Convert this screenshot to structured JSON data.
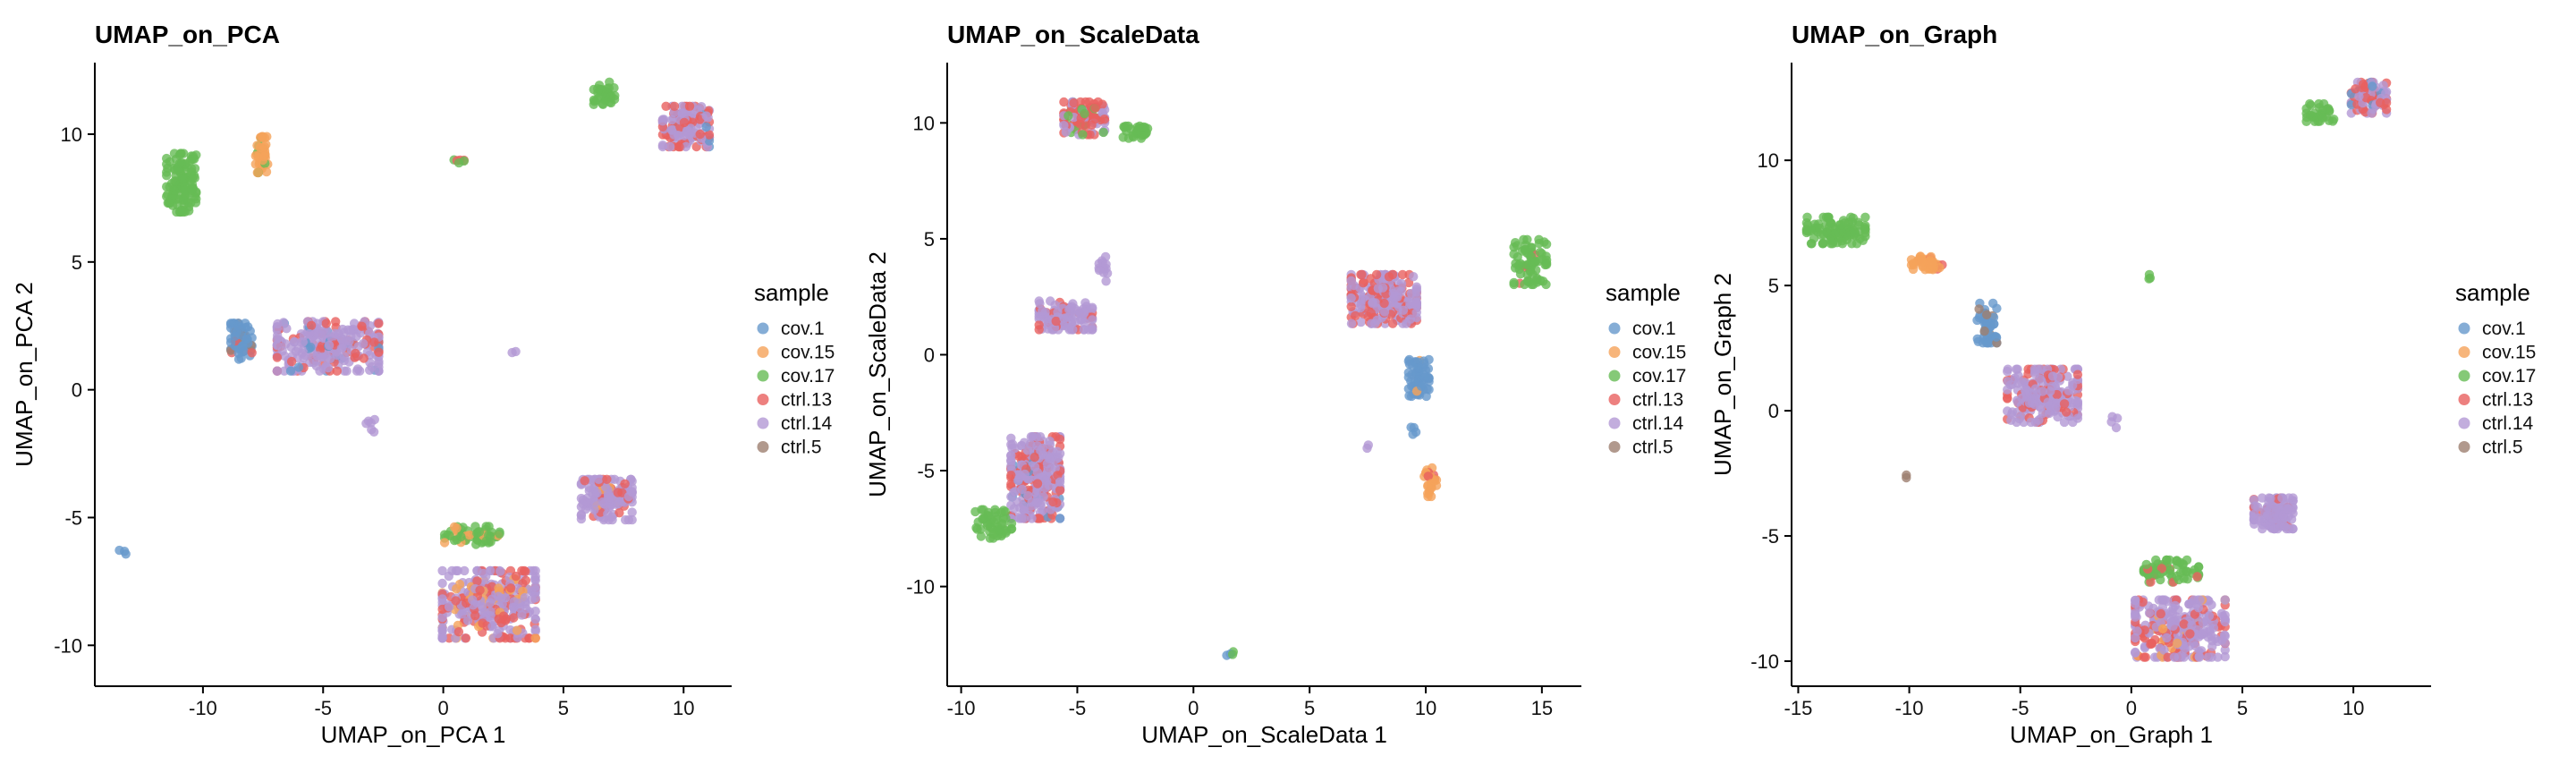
{
  "colors": {
    "cov.1": "#6699CC",
    "cov.15": "#F5A35A",
    "cov.17": "#66BB55",
    "ctrl.13": "#E8605F",
    "ctrl.14": "#B399D4",
    "ctrl.5": "#9E8070"
  },
  "chart_data": [
    {
      "type": "scatter",
      "title": "UMAP_on_PCA",
      "xlabel": "UMAP_on_PCA 1",
      "ylabel": "UMAP_on_PCA 2",
      "xlim": [
        -14.5,
        12
      ],
      "ylim": [
        -11.6,
        12.8
      ],
      "xticks": [
        -10,
        -5,
        0,
        5,
        10
      ],
      "yticks": [
        -10,
        -5,
        0,
        5,
        10
      ],
      "xtick_labels": [
        "-10",
        "-5",
        "0",
        "5",
        "10"
      ],
      "ytick_labels": [
        "-10",
        "-5",
        "0",
        "5",
        "10"
      ],
      "legend_title": "sample",
      "legend": [
        "cov.1",
        "cov.15",
        "cov.17",
        "ctrl.13",
        "ctrl.14",
        "ctrl.5"
      ],
      "legend_position": "right",
      "grid": false,
      "clusters": [
        {
          "x": -10.9,
          "y": 8.1,
          "rx": 0.7,
          "ry": 1.3,
          "n": 120,
          "mix": {
            "cov.17": 1.0
          }
        },
        {
          "x": -7.5,
          "y": 9.2,
          "rx": 0.35,
          "ry": 0.8,
          "n": 40,
          "mix": {
            "cov.15": 0.9,
            "cov.17": 0.1
          }
        },
        {
          "x": -8.4,
          "y": 1.9,
          "rx": 0.5,
          "ry": 0.8,
          "n": 60,
          "mix": {
            "cov.1": 0.85,
            "ctrl.13": 0.05,
            "ctrl.5": 0.1
          }
        },
        {
          "x": -4.8,
          "y": 1.7,
          "rx": 2.4,
          "ry": 1.1,
          "n": 260,
          "mix": {
            "ctrl.14": 0.75,
            "ctrl.13": 0.2,
            "cov.1": 0.05
          }
        },
        {
          "x": -3.0,
          "y": -1.3,
          "rx": 0.3,
          "ry": 0.4,
          "n": 6,
          "mix": {
            "ctrl.14": 1.0
          }
        },
        {
          "x": 0.6,
          "y": 9.0,
          "rx": 0.3,
          "ry": 0.2,
          "n": 6,
          "mix": {
            "cov.17": 0.6,
            "ctrl.13": 0.4
          }
        },
        {
          "x": 6.7,
          "y": 11.6,
          "rx": 0.5,
          "ry": 0.5,
          "n": 40,
          "mix": {
            "cov.17": 1.0
          }
        },
        {
          "x": 10.1,
          "y": 10.3,
          "rx": 1.1,
          "ry": 0.9,
          "n": 140,
          "mix": {
            "ctrl.14": 0.6,
            "ctrl.13": 0.35,
            "cov.1": 0.05
          }
        },
        {
          "x": 2.9,
          "y": 1.4,
          "rx": 0.15,
          "ry": 0.15,
          "n": 2,
          "mix": {
            "ctrl.14": 1.0
          }
        },
        {
          "x": -13.3,
          "y": -6.3,
          "rx": 0.2,
          "ry": 0.15,
          "n": 3,
          "mix": {
            "cov.1": 1.0
          }
        },
        {
          "x": 1.2,
          "y": -5.7,
          "rx": 1.3,
          "ry": 0.4,
          "n": 60,
          "mix": {
            "cov.17": 0.85,
            "cov.15": 0.15
          }
        },
        {
          "x": 1.9,
          "y": -8.4,
          "rx": 2.2,
          "ry": 1.5,
          "n": 300,
          "mix": {
            "ctrl.14": 0.6,
            "ctrl.13": 0.3,
            "cov.15": 0.1
          }
        },
        {
          "x": 6.8,
          "y": -4.3,
          "rx": 1.2,
          "ry": 0.9,
          "n": 160,
          "mix": {
            "ctrl.14": 0.8,
            "ctrl.13": 0.15,
            "cov.15": 0.05
          }
        }
      ]
    },
    {
      "type": "scatter",
      "title": "UMAP_on_ScaleData",
      "xlabel": "UMAP_on_ScaleData 1",
      "ylabel": "UMAP_on_ScaleData 2",
      "xlim": [
        -10.6,
        16.7
      ],
      "ylim": [
        -14.3,
        12.6
      ],
      "xticks": [
        -10,
        -5,
        0,
        5,
        10,
        15
      ],
      "yticks": [
        -10,
        -5,
        0,
        5,
        10
      ],
      "xtick_labels": [
        "-10",
        "-5",
        "0",
        "5",
        "10",
        "15"
      ],
      "ytick_labels": [
        "-10",
        "-5",
        "0",
        "5",
        "10"
      ],
      "legend_title": "sample",
      "legend": [
        "cov.1",
        "cov.15",
        "cov.17",
        "ctrl.13",
        "ctrl.14",
        "ctrl.5"
      ],
      "legend_position": "right",
      "grid": false,
      "clusters": [
        {
          "x": -4.7,
          "y": 10.2,
          "rx": 1.0,
          "ry": 0.8,
          "n": 110,
          "mix": {
            "ctrl.13": 0.55,
            "ctrl.14": 0.35,
            "cov.17": 0.1
          }
        },
        {
          "x": -2.5,
          "y": 9.6,
          "rx": 0.6,
          "ry": 0.3,
          "n": 30,
          "mix": {
            "cov.17": 1.0
          }
        },
        {
          "x": -5.5,
          "y": 1.7,
          "rx": 1.3,
          "ry": 0.7,
          "n": 110,
          "mix": {
            "ctrl.14": 0.8,
            "ctrl.13": 0.2
          }
        },
        {
          "x": -3.8,
          "y": 3.7,
          "rx": 0.3,
          "ry": 0.6,
          "n": 12,
          "mix": {
            "ctrl.14": 1.0
          }
        },
        {
          "x": -6.8,
          "y": -5.3,
          "rx": 1.2,
          "ry": 2.0,
          "n": 300,
          "mix": {
            "ctrl.14": 0.6,
            "ctrl.13": 0.35,
            "cov.1": 0.05
          }
        },
        {
          "x": -8.6,
          "y": -7.3,
          "rx": 0.9,
          "ry": 0.7,
          "n": 50,
          "mix": {
            "cov.17": 1.0
          }
        },
        {
          "x": 8.2,
          "y": 2.4,
          "rx": 1.6,
          "ry": 1.2,
          "n": 240,
          "mix": {
            "ctrl.14": 0.6,
            "ctrl.13": 0.4
          }
        },
        {
          "x": 14.5,
          "y": 4.0,
          "rx": 0.8,
          "ry": 1.1,
          "n": 70,
          "mix": {
            "cov.17": 0.95,
            "ctrl.13": 0.05
          }
        },
        {
          "x": 9.7,
          "y": -1.0,
          "rx": 0.5,
          "ry": 0.9,
          "n": 60,
          "mix": {
            "cov.1": 0.95,
            "cov.15": 0.05
          }
        },
        {
          "x": 10.2,
          "y": -5.5,
          "rx": 0.3,
          "ry": 0.7,
          "n": 25,
          "mix": {
            "cov.15": 0.9,
            "ctrl.13": 0.1
          }
        },
        {
          "x": 9.5,
          "y": -3.2,
          "rx": 0.15,
          "ry": 0.4,
          "n": 4,
          "mix": {
            "cov.1": 1.0
          }
        },
        {
          "x": 7.5,
          "y": -3.9,
          "rx": 0.15,
          "ry": 0.15,
          "n": 2,
          "mix": {
            "ctrl.14": 1.0
          }
        },
        {
          "x": 1.6,
          "y": -12.8,
          "rx": 0.2,
          "ry": 0.3,
          "n": 4,
          "mix": {
            "cov.1": 0.5,
            "cov.17": 0.5
          }
        }
      ]
    },
    {
      "type": "scatter",
      "title": "UMAP_on_Graph",
      "xlabel": "UMAP_on_Graph 1",
      "ylabel": "UMAP_on_Graph 2",
      "xlim": [
        -15.3,
        13.5
      ],
      "ylim": [
        -11.0,
        13.9
      ],
      "xticks": [
        -15,
        -10,
        -5,
        0,
        5,
        10
      ],
      "yticks": [
        -10,
        -5,
        0,
        5,
        10
      ],
      "xtick_labels": [
        "-15",
        "-10",
        "-5",
        "0",
        "5",
        "10"
      ],
      "ytick_labels": [
        "-10",
        "-5",
        "0",
        "5",
        "10"
      ],
      "legend_title": "sample",
      "legend": [
        "cov.1",
        "cov.15",
        "cov.17",
        "ctrl.13",
        "ctrl.14",
        "ctrl.5"
      ],
      "legend_position": "right",
      "grid": false,
      "clusters": [
        {
          "x": -13.3,
          "y": 7.2,
          "rx": 1.5,
          "ry": 0.6,
          "n": 100,
          "mix": {
            "cov.17": 1.0
          }
        },
        {
          "x": -9.2,
          "y": 5.9,
          "rx": 0.8,
          "ry": 0.3,
          "n": 40,
          "mix": {
            "cov.15": 0.9,
            "ctrl.13": 0.05,
            "cov.17": 0.05
          }
        },
        {
          "x": -6.5,
          "y": 3.5,
          "rx": 0.5,
          "ry": 0.9,
          "n": 50,
          "mix": {
            "cov.1": 0.9,
            "ctrl.5": 0.1
          }
        },
        {
          "x": -4.0,
          "y": 0.6,
          "rx": 1.8,
          "ry": 1.2,
          "n": 220,
          "mix": {
            "ctrl.14": 0.8,
            "ctrl.13": 0.2
          }
        },
        {
          "x": -0.8,
          "y": -0.5,
          "rx": 0.2,
          "ry": 0.3,
          "n": 4,
          "mix": {
            "ctrl.14": 1.0
          }
        },
        {
          "x": 0.8,
          "y": 5.4,
          "rx": 0.15,
          "ry": 0.15,
          "n": 3,
          "mix": {
            "cov.17": 0.5,
            "ctrl.13": 0.5
          }
        },
        {
          "x": -10.0,
          "y": -2.7,
          "rx": 0.15,
          "ry": 0.15,
          "n": 2,
          "mix": {
            "ctrl.5": 0.5,
            "cov.1": 0.5
          }
        },
        {
          "x": 8.5,
          "y": 11.9,
          "rx": 0.7,
          "ry": 0.4,
          "n": 30,
          "mix": {
            "cov.17": 1.0
          }
        },
        {
          "x": 10.7,
          "y": 12.5,
          "rx": 0.9,
          "ry": 0.7,
          "n": 90,
          "mix": {
            "ctrl.13": 0.55,
            "ctrl.14": 0.4,
            "cov.1": 0.05
          }
        },
        {
          "x": 6.4,
          "y": -4.1,
          "rx": 1.0,
          "ry": 0.7,
          "n": 120,
          "mix": {
            "ctrl.14": 0.85,
            "ctrl.13": 0.15
          }
        },
        {
          "x": 1.8,
          "y": -6.4,
          "rx": 1.4,
          "ry": 0.5,
          "n": 60,
          "mix": {
            "cov.17": 0.9,
            "ctrl.13": 0.1
          }
        },
        {
          "x": 2.2,
          "y": -8.7,
          "rx": 2.3,
          "ry": 1.3,
          "n": 300,
          "mix": {
            "ctrl.14": 0.6,
            "ctrl.13": 0.3,
            "cov.15": 0.1
          }
        }
      ]
    }
  ]
}
